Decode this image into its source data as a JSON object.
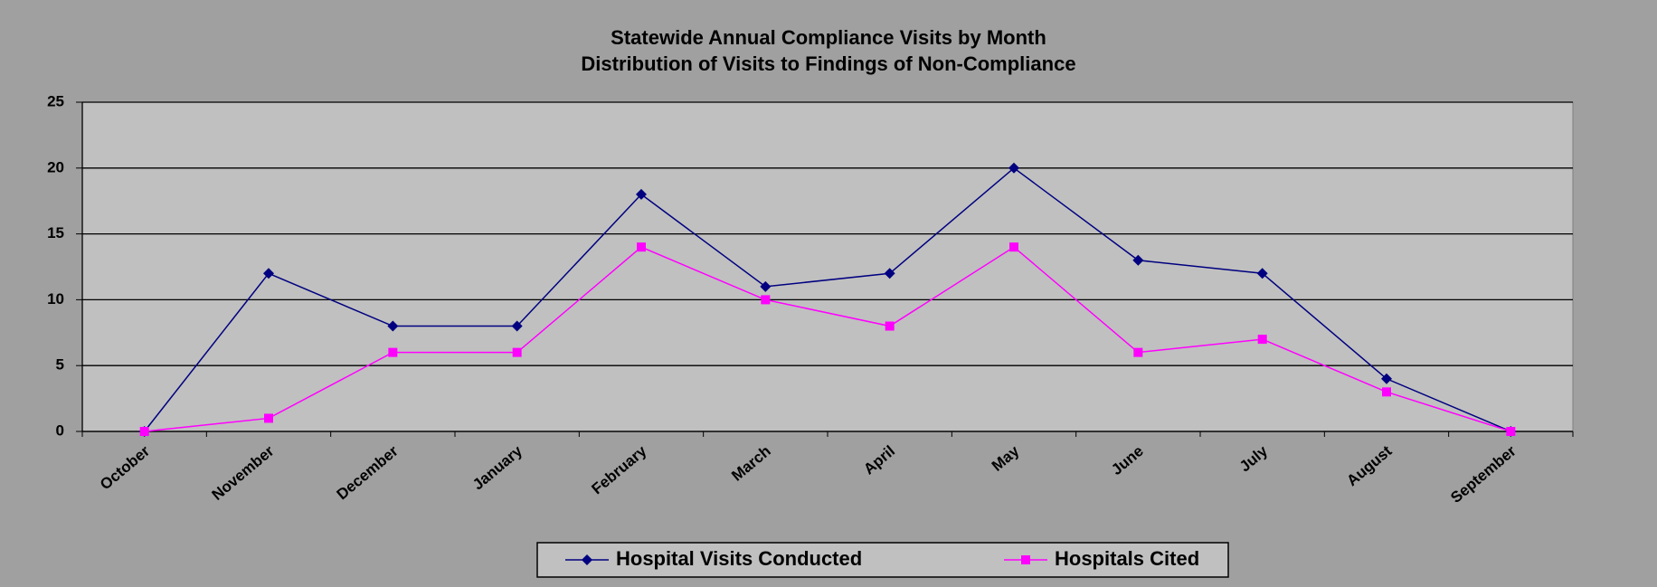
{
  "chart_data": {
    "type": "line",
    "title": "Statewide Annual Compliance Visits by Month",
    "subtitle": "Distribution of Visits to Findings of Non-Compliance",
    "categories": [
      "October",
      "November",
      "December",
      "January",
      "February",
      "March",
      "April",
      "May",
      "June",
      "July",
      "August",
      "September"
    ],
    "series": [
      {
        "name": "Hospital Visits Conducted",
        "color": "#000080",
        "marker": "diamond",
        "values": [
          0,
          12,
          8,
          8,
          18,
          11,
          12,
          20,
          13,
          12,
          4,
          0
        ]
      },
      {
        "name": "Hospitals Cited",
        "color": "#ff00ff",
        "marker": "square",
        "values": [
          0,
          1,
          6,
          6,
          14,
          10,
          8,
          14,
          6,
          7,
          3,
          0
        ]
      }
    ],
    "ylim": [
      0,
      25
    ],
    "yticks": [
      0,
      5,
      10,
      15,
      20,
      25
    ],
    "grid": true,
    "legend": "bottom"
  }
}
